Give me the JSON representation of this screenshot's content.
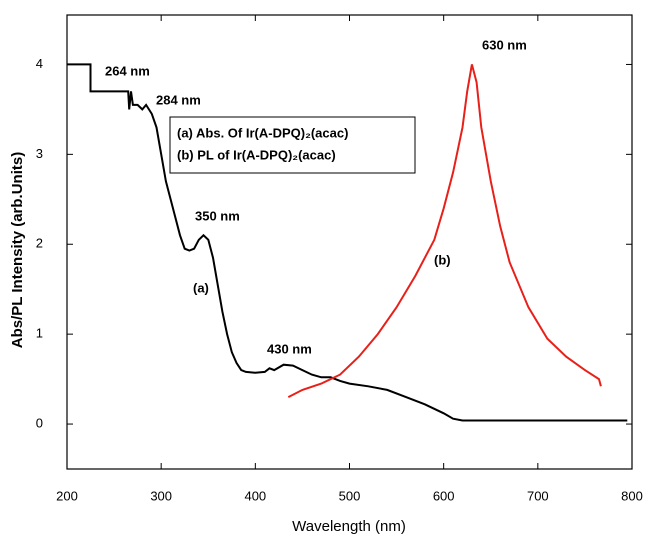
{
  "chart_data": {
    "type": "line",
    "x_label": "Wavelength (nm)",
    "y_label": "Abs/PL Intensity (arb.Units)",
    "xlim": [
      200,
      800
    ],
    "ylim": [
      -0.5,
      4.55
    ],
    "xticks": [
      200,
      300,
      400,
      500,
      600,
      700,
      800
    ],
    "yticks": [
      0,
      1,
      2,
      3,
      4
    ],
    "series": [
      {
        "name": "(a) Abs. Of Ir(A-DPQ)₂(acac)",
        "color": "#000000",
        "x": [
          200,
          225,
          225,
          265,
          266,
          268,
          270,
          275,
          280,
          284,
          290,
          295,
          300,
          305,
          310,
          315,
          320,
          325,
          330,
          335,
          340,
          345,
          350,
          355,
          360,
          365,
          370,
          375,
          380,
          385,
          390,
          400,
          410,
          415,
          420,
          430,
          440,
          450,
          460,
          470,
          480,
          490,
          500,
          520,
          540,
          560,
          580,
          600,
          610,
          620,
          700,
          795
        ],
        "values": [
          4,
          4,
          3.7,
          3.7,
          3.5,
          3.7,
          3.55,
          3.55,
          3.5,
          3.55,
          3.45,
          3.3,
          3.0,
          2.7,
          2.5,
          2.3,
          2.1,
          1.95,
          1.93,
          1.95,
          2.05,
          2.1,
          2.05,
          1.85,
          1.55,
          1.25,
          1.0,
          0.8,
          0.68,
          0.6,
          0.58,
          0.57,
          0.58,
          0.62,
          0.6,
          0.66,
          0.65,
          0.6,
          0.55,
          0.52,
          0.52,
          0.48,
          0.45,
          0.42,
          0.38,
          0.3,
          0.22,
          0.12,
          0.06,
          0.04,
          0.04,
          0.04
        ]
      },
      {
        "name": "(b) PL of Ir(A-DPQ)₂(acac)",
        "color": "#e8201a",
        "x": [
          435,
          450,
          470,
          490,
          510,
          530,
          550,
          570,
          590,
          600,
          610,
          620,
          625,
          630,
          635,
          640,
          650,
          660,
          670,
          690,
          710,
          730,
          750,
          765,
          767
        ],
        "values": [
          0.3,
          0.38,
          0.45,
          0.55,
          0.75,
          1.0,
          1.3,
          1.65,
          2.05,
          2.4,
          2.8,
          3.3,
          3.7,
          4.0,
          3.8,
          3.3,
          2.7,
          2.2,
          1.8,
          1.3,
          0.95,
          0.75,
          0.6,
          0.5,
          0.42
        ]
      }
    ],
    "annotations": [
      "264 nm",
      "284 nm",
      "350 nm",
      "(a)",
      "430 nm",
      "630 nm",
      "(b)"
    ]
  }
}
